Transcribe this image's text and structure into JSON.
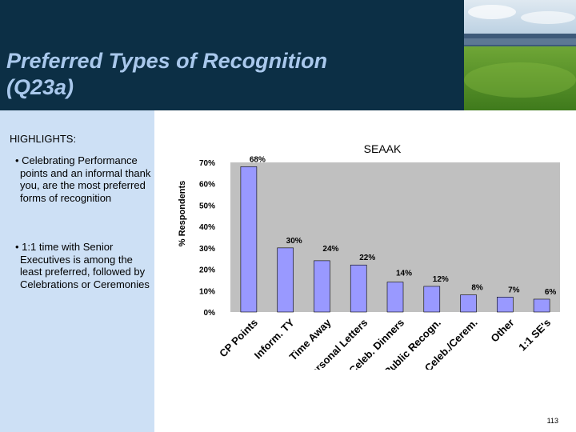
{
  "header": {
    "title_line1": "Preferred Types of Recognition",
    "title_line2": "(Q23a)"
  },
  "highlights": {
    "heading": "HIGHLIGHTS:",
    "bullets": [
      "• Celebrating Performance points and an informal thank you, are the most preferred forms of recognition",
      "• 1:1 time with Senior Executives is among the least preferred, followed by Celebrations or Ceremonies"
    ]
  },
  "chart_data": {
    "type": "bar",
    "title": "SEAAK",
    "xlabel": "",
    "ylabel": "% Respondents",
    "categories": [
      "CP Points",
      "Inform. TY",
      "Time Away",
      "Personal Letters",
      "Celeb. Dinners",
      "Public Recogn.",
      "Celeb./Cerem.",
      "Other",
      "1:1 SE's"
    ],
    "values": [
      68,
      30,
      24,
      22,
      14,
      12,
      8,
      7,
      6
    ],
    "value_labels": [
      "68%",
      "30%",
      "24%",
      "22%",
      "14%",
      "12%",
      "8%",
      "7%",
      "6%"
    ],
    "ylim": [
      0,
      70
    ],
    "y_ticks": [
      "0%",
      "10%",
      "20%",
      "30%",
      "40%",
      "50%",
      "60%",
      "70%"
    ],
    "grid": false,
    "colors": {
      "bar_fill": "#9999ff",
      "plot_bg": "#c0c0c0"
    }
  },
  "footer": {
    "page_number": "113"
  }
}
